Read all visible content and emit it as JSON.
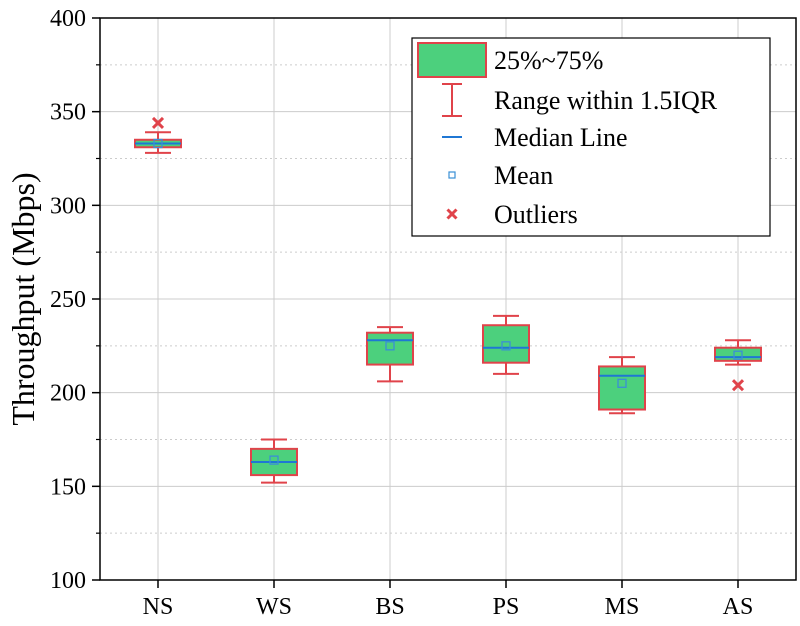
{
  "chart_data": {
    "type": "box",
    "title": "",
    "xlabel": "",
    "ylabel": "Throughput (Mbps)",
    "ylim": [
      100,
      400
    ],
    "yticks": [
      "100",
      "150",
      "200",
      "250",
      "300",
      "350",
      "400"
    ],
    "categories": [
      "NS",
      "WS",
      "BS",
      "PS",
      "MS",
      "AS"
    ],
    "boxes": [
      {
        "category": "NS",
        "whisker_low": 328,
        "q1": 331,
        "median": 333,
        "q3": 335,
        "whisker_high": 339,
        "mean": 333,
        "outliers": [
          344
        ]
      },
      {
        "category": "WS",
        "whisker_low": 152,
        "q1": 156,
        "median": 163,
        "q3": 170,
        "whisker_high": 175,
        "mean": 164,
        "outliers": []
      },
      {
        "category": "BS",
        "whisker_low": 206,
        "q1": 215,
        "median": 228,
        "q3": 232,
        "whisker_high": 235,
        "mean": 225,
        "outliers": []
      },
      {
        "category": "PS",
        "whisker_low": 210,
        "q1": 216,
        "median": 224,
        "q3": 236,
        "whisker_high": 241,
        "mean": 225,
        "outliers": []
      },
      {
        "category": "MS",
        "whisker_low": 189,
        "q1": 191,
        "median": 209,
        "q3": 214,
        "whisker_high": 219,
        "mean": 205,
        "outliers": []
      },
      {
        "category": "AS",
        "whisker_low": 215,
        "q1": 217,
        "median": 219,
        "q3": 224,
        "whisker_high": 228,
        "mean": 220,
        "outliers": [
          204
        ]
      }
    ],
    "legend": {
      "placement": "top-right",
      "items": [
        {
          "key": "box",
          "label": "25%~75%"
        },
        {
          "key": "whisker",
          "label": "Range within 1.5IQR"
        },
        {
          "key": "median",
          "label": "Median Line"
        },
        {
          "key": "mean",
          "label": "Mean"
        },
        {
          "key": "outlier",
          "label": "Outliers"
        }
      ]
    },
    "grid": true,
    "colors": {
      "box_fill": "#4cd07d",
      "box_edge": "#e0434a",
      "whisker": "#e0434a",
      "median": "#1f77d4",
      "mean": "#3a8fd6",
      "outlier": "#e0434a",
      "grid": "#cccccc"
    }
  }
}
